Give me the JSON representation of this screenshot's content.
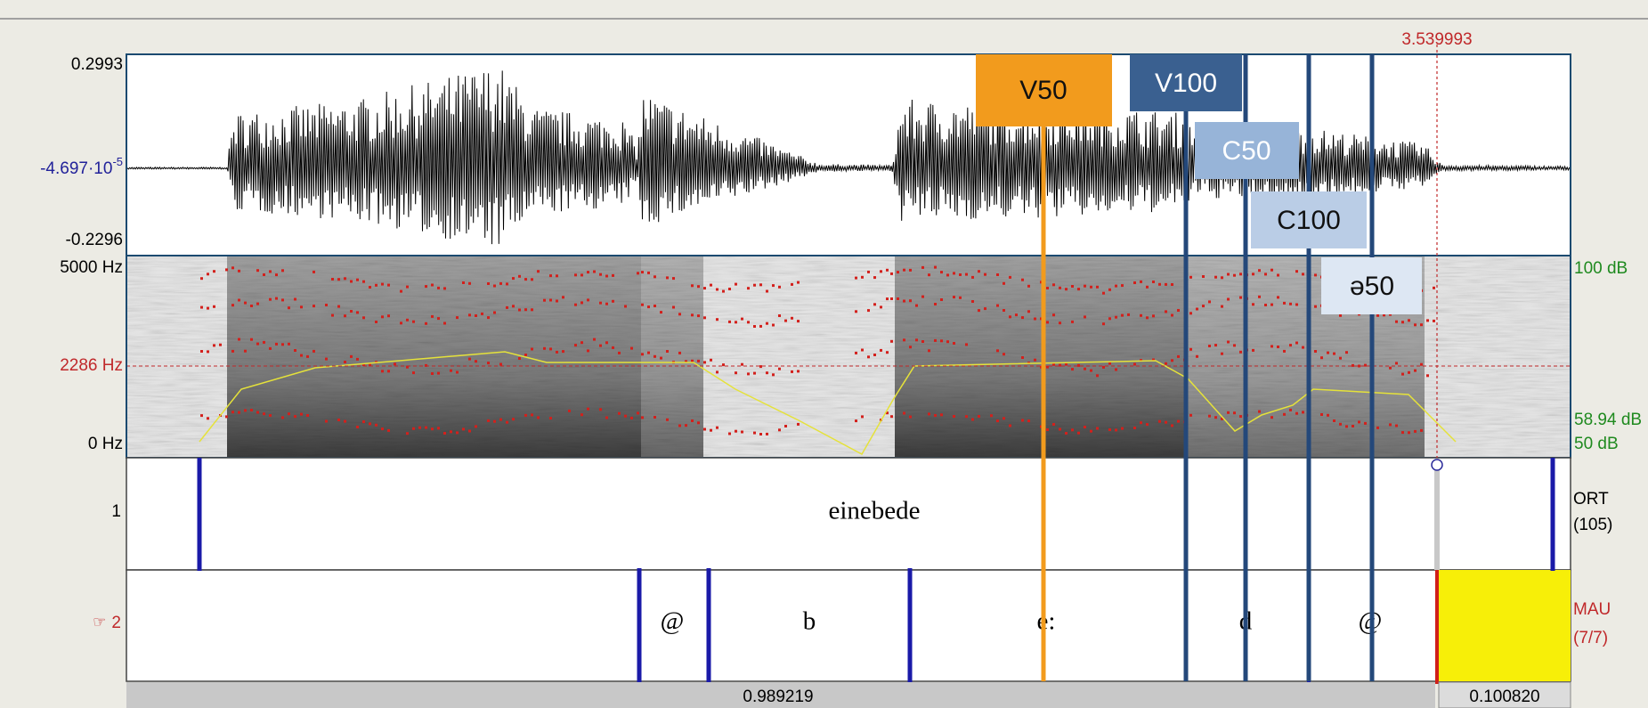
{
  "cursor_time": "3.539993",
  "waveform": {
    "max": "0.2993",
    "zero": "-4.697·10",
    "zero_exponent": "-5",
    "min": "-0.2296"
  },
  "spectrogram": {
    "top": "5000 Hz",
    "cursor": "2286 Hz",
    "bottom": "0 Hz",
    "intensity_top": "100 dB",
    "intensity_cursor": "58.94 dB",
    "intensity_bottom": "50 dB"
  },
  "tiers": [
    {
      "number": "1",
      "name": "ORT",
      "count": "(105)",
      "intervals": [
        "einebede"
      ]
    },
    {
      "marker": "☞",
      "number": "2",
      "name": "MAU",
      "count": "(7/7)",
      "intervals": [
        "@",
        "b",
        "e:",
        "d",
        "@"
      ]
    }
  ],
  "durations": [
    "0.989219",
    "0.100820"
  ],
  "annotations": [
    "V50",
    "V100",
    "C50",
    "C100",
    "ə50"
  ]
}
